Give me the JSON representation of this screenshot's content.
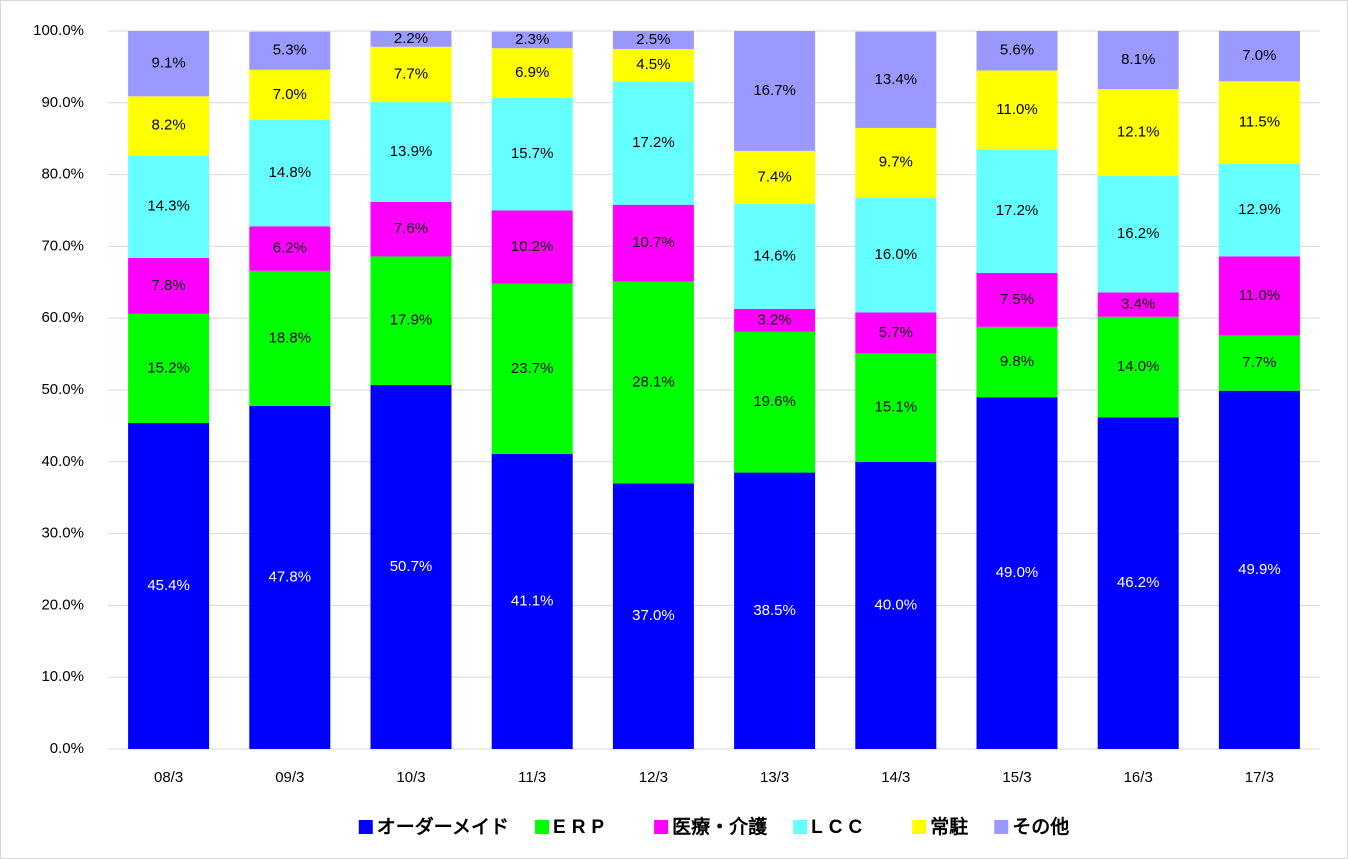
{
  "chart_data": {
    "type": "stacked_bar",
    "categories": [
      "08/3",
      "09/3",
      "10/3",
      "11/3",
      "12/3",
      "13/3",
      "14/3",
      "15/3",
      "16/3",
      "17/3"
    ],
    "ylim": [
      0,
      100
    ],
    "yticks": [
      {
        "value": 0,
        "label": "0.0%"
      },
      {
        "value": 10,
        "label": "10.0%"
      },
      {
        "value": 20,
        "label": "20.0%"
      },
      {
        "value": 30,
        "label": "30.0%"
      },
      {
        "value": 40,
        "label": "40.0%"
      },
      {
        "value": 50,
        "label": "50.0%"
      },
      {
        "value": 60,
        "label": "60.0%"
      },
      {
        "value": 70,
        "label": "70.0%"
      },
      {
        "value": 80,
        "label": "80.0%"
      },
      {
        "value": 90,
        "label": "90.0%"
      },
      {
        "value": 100,
        "label": "100.0%"
      }
    ],
    "grid": true,
    "legend": "bottom",
    "series": [
      {
        "name": "オーダーメイド",
        "color": "#0000ff",
        "values": [
          45.4,
          47.8,
          50.7,
          41.1,
          37.0,
          38.5,
          40.0,
          49.0,
          46.2,
          49.9
        ],
        "value_labels": [
          "45.4%",
          "47.8%",
          "50.7%",
          "41.1%",
          "37.0%",
          "38.5%",
          "40.0%",
          "49.0%",
          "46.2%",
          "49.9%"
        ]
      },
      {
        "name": "ERP",
        "color": "#00ff00",
        "values": [
          15.2,
          18.8,
          17.9,
          23.7,
          28.1,
          19.6,
          15.1,
          9.8,
          14.0,
          7.7
        ],
        "value_labels": [
          "15.2%",
          "18.8%",
          "17.9%",
          "23.7%",
          "28.1%",
          "19.6%",
          "15.1%",
          "9.8%",
          "14.0%",
          "7.7%"
        ]
      },
      {
        "name": "医療・介護",
        "color": "#ff00ff",
        "values": [
          7.8,
          6.2,
          7.6,
          10.2,
          10.7,
          3.2,
          5.7,
          7.5,
          3.4,
          11.0
        ],
        "value_labels": [
          "7.8%",
          "6.2%",
          "7.6%",
          "10.2%",
          "10.7%",
          "3.2%",
          "5.7%",
          "7.5%",
          "3.4%",
          "11.0%"
        ]
      },
      {
        "name": "LCC",
        "color": "#66ffff",
        "values": [
          14.3,
          14.8,
          13.9,
          15.7,
          17.2,
          14.6,
          16.0,
          17.2,
          16.2,
          12.9
        ],
        "value_labels": [
          "14.3%",
          "14.8%",
          "13.9%",
          "15.7%",
          "17.2%",
          "14.6%",
          "16.0%",
          "17.2%",
          "16.2%",
          "12.9%"
        ]
      },
      {
        "name": "常駐",
        "color": "#ffff00",
        "values": [
          8.2,
          7.0,
          7.7,
          6.9,
          4.5,
          7.4,
          9.7,
          11.0,
          12.1,
          11.5
        ],
        "value_labels": [
          "8.2%",
          "7.0%",
          "7.7%",
          "6.9%",
          "4.5%",
          "7.4%",
          "9.7%",
          "11.0%",
          "12.1%",
          "11.5%"
        ]
      },
      {
        "name": "その他",
        "color": "#9999ff",
        "values": [
          9.1,
          5.3,
          2.2,
          2.3,
          2.5,
          16.7,
          13.4,
          5.6,
          8.1,
          7.0
        ],
        "value_labels": [
          "9.1%",
          "5.3%",
          "2.2%",
          "2.3%",
          "2.5%",
          "16.7%",
          "13.4%",
          "5.6%",
          "8.1%",
          "7.0%"
        ]
      }
    ]
  }
}
